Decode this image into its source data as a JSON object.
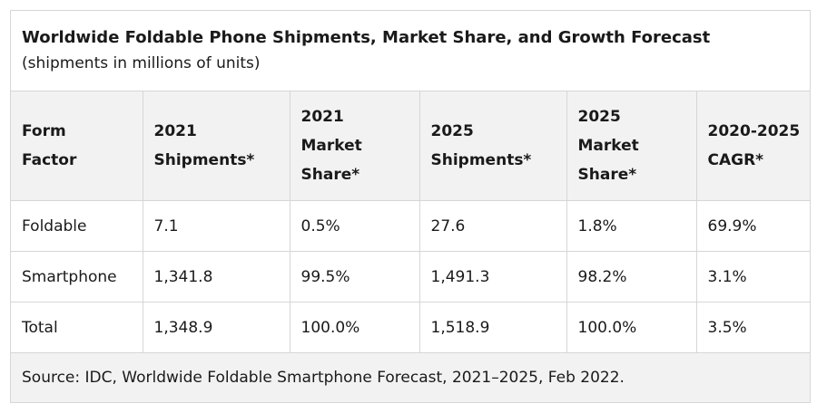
{
  "caption": {
    "title": "Worldwide Foldable Phone Shipments, Market Share, and Growth Forecast",
    "subtitle": "(shipments in millions of units)"
  },
  "table": {
    "headers": [
      [
        "Form",
        "Factor"
      ],
      [
        "2021",
        "Shipments*"
      ],
      [
        "2021",
        "Market",
        "Share*"
      ],
      [
        "2025",
        "Shipments*"
      ],
      [
        "2025",
        "Market",
        "Share*"
      ],
      [
        "2020-2025",
        "CAGR*"
      ]
    ],
    "rows": [
      [
        "Foldable",
        "7.1",
        "0.5%",
        "27.6",
        "1.8%",
        "69.9%"
      ],
      [
        "Smartphone",
        "1,341.8",
        "99.5%",
        "1,491.3",
        "98.2%",
        "3.1%"
      ],
      [
        "Total",
        "1,348.9",
        "100.0%",
        "1,518.9",
        "100.0%",
        "3.5%"
      ]
    ]
  },
  "source": "Source: IDC, Worldwide Foldable Smartphone Forecast, 2021–2025, Feb 2022."
}
